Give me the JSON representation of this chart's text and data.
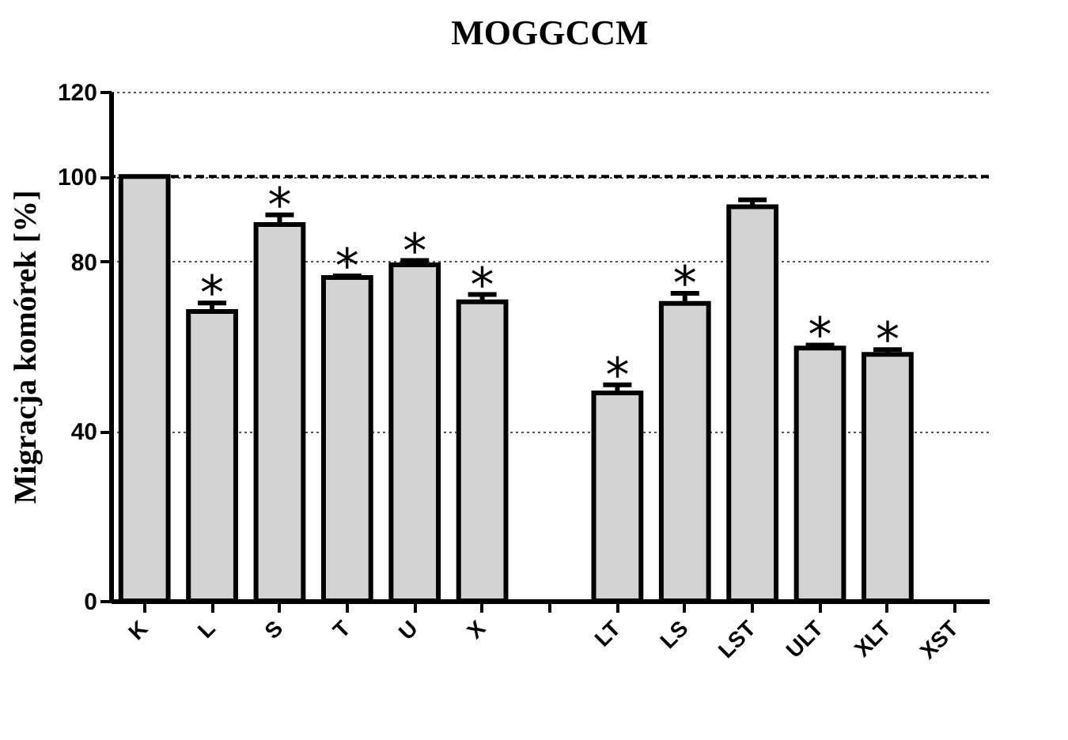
{
  "chart_data": {
    "type": "bar",
    "title": "MOGGCCM",
    "ylabel": "Migracja komórek [%]",
    "categories": [
      "K",
      "L",
      "S",
      "T",
      "U",
      "X",
      null,
      "LT",
      "LS",
      "LST",
      "ULT",
      "XLT",
      "XST"
    ],
    "values": [
      100,
      68.2,
      88.7,
      76.2,
      79.2,
      70.5,
      null,
      49,
      70.1,
      92.9,
      59.6,
      58.1,
      null
    ],
    "errors": [
      null,
      2,
      2.3,
      0.4,
      1,
      1.7,
      null,
      1.9,
      2.4,
      1.6,
      0.7,
      1.1,
      null
    ],
    "color": "#d3d3d3",
    "ylim": [
      0,
      120
    ],
    "yticks": [
      0,
      40,
      80,
      100,
      120
    ],
    "grid": "y",
    "ref_lines": [
      {
        "axis": "y",
        "value": 100,
        "line_style": "dashed"
      }
    ],
    "annotations": [
      {
        "text": "*",
        "x": "L",
        "y": 70.2
      },
      {
        "text": "*",
        "x": "S",
        "y": 91
      },
      {
        "text": "*",
        "x": "T",
        "y": 76.6
      },
      {
        "text": "*",
        "x": "U",
        "y": 80.2
      },
      {
        "text": "*",
        "x": "X",
        "y": 72.2
      },
      {
        "text": "*",
        "x": "LT",
        "y": 50.9
      },
      {
        "text": "*",
        "x": "LS",
        "y": 72.5
      },
      {
        "text": "*",
        "x": "ULT",
        "y": 60.3
      },
      {
        "text": "*",
        "x": "XLT",
        "y": 59.2
      }
    ]
  }
}
